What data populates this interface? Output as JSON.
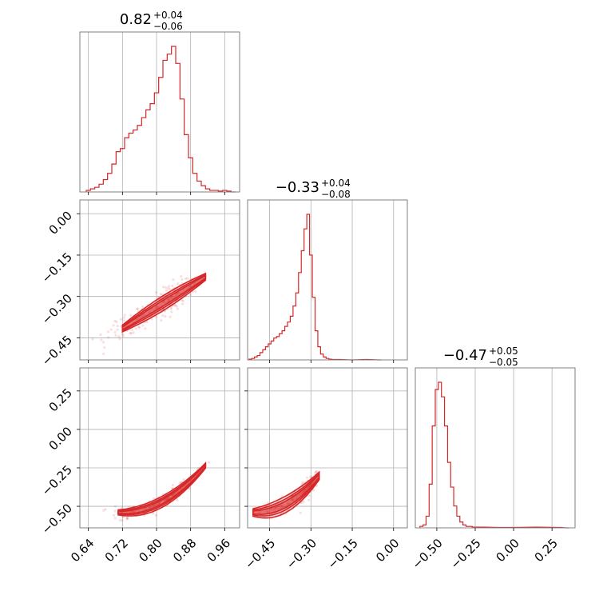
{
  "chart_data": {
    "type": "scatter",
    "variant": "corner-plot",
    "color": "#d62728",
    "grid": true,
    "titles": [
      {
        "median": "0.82",
        "plus": "+0.04",
        "minus": "−0.06"
      },
      {
        "median": "−0.33",
        "plus": "+0.04",
        "minus": "−0.08"
      },
      {
        "median": "−0.47",
        "plus": "+0.05",
        "minus": "−0.05"
      }
    ],
    "axes": [
      {
        "range": [
          0.62,
          0.995
        ],
        "ticks": [
          0.64,
          0.72,
          0.8,
          0.88,
          0.96
        ],
        "tick_labels": [
          "0.64",
          "0.72",
          "0.80",
          "0.88",
          "0.96"
        ]
      },
      {
        "range": [
          -0.53,
          0.05
        ],
        "ticks": [
          -0.45,
          -0.3,
          -0.15,
          0.0
        ],
        "tick_labels": [
          "−0.45",
          "−0.30",
          "−0.15",
          "0.00"
        ]
      },
      {
        "range": [
          -0.64,
          0.4
        ],
        "ticks": [
          -0.5,
          -0.25,
          0.0,
          0.25
        ],
        "tick_labels": [
          "−0.50",
          "−0.25",
          "0.00",
          "0.25"
        ]
      }
    ],
    "histograms": [
      {
        "x": [
          0.64,
          0.65,
          0.66,
          0.67,
          0.68,
          0.69,
          0.7,
          0.71,
          0.72,
          0.73,
          0.74,
          0.75,
          0.76,
          0.77,
          0.78,
          0.79,
          0.8,
          0.81,
          0.82,
          0.83,
          0.84,
          0.85,
          0.86,
          0.87,
          0.88,
          0.89,
          0.9,
          0.91,
          0.92,
          0.93,
          0.94,
          0.95,
          0.96,
          0.97,
          0.98
        ],
        "density": [
          1,
          2,
          3,
          5,
          8,
          12,
          18,
          26,
          28,
          35,
          38,
          40,
          43,
          48,
          53,
          57,
          64,
          74,
          85,
          89,
          94,
          83,
          60,
          37,
          22,
          12,
          7,
          4,
          2,
          1,
          1,
          0.5,
          1,
          0.5,
          0
        ]
      },
      {
        "x": [
          -0.52,
          -0.51,
          -0.5,
          -0.49,
          -0.48,
          -0.47,
          -0.46,
          -0.45,
          -0.44,
          -0.43,
          -0.42,
          -0.41,
          -0.4,
          -0.39,
          -0.38,
          -0.37,
          -0.36,
          -0.35,
          -0.34,
          -0.33,
          -0.32,
          -0.31,
          -0.3,
          -0.29,
          -0.28,
          -0.27,
          -0.26,
          -0.25,
          -0.24,
          -0.23,
          -0.22,
          -0.2,
          -0.15,
          -0.1,
          -0.05
        ],
        "density": [
          0.5,
          1,
          2,
          3,
          5,
          7,
          9,
          11,
          13,
          15,
          16,
          18,
          20,
          23,
          26,
          30,
          37,
          46,
          60,
          75,
          90,
          100,
          72,
          43,
          20,
          9,
          4,
          2,
          1,
          0.5,
          0.3,
          0.3,
          0,
          0.3,
          0
        ]
      },
      {
        "x": [
          -0.6,
          -0.58,
          -0.56,
          -0.54,
          -0.52,
          -0.5,
          -0.48,
          -0.46,
          -0.44,
          -0.42,
          -0.4,
          -0.38,
          -0.36,
          -0.34,
          -0.32,
          -0.3,
          -0.28,
          -0.26,
          -0.24,
          -0.2,
          -0.1,
          0.0,
          0.15,
          0.3,
          0.35
        ],
        "density": [
          1,
          2,
          8,
          30,
          70,
          95,
          100,
          90,
          70,
          45,
          28,
          15,
          8,
          4,
          2,
          1,
          1,
          0.5,
          0.5,
          0.5,
          0.3,
          0.3,
          0.5,
          0.3,
          0
        ]
      }
    ],
    "scatter_2d": [
      {
        "pair": [
          0,
          1
        ],
        "center": [
          0.82,
          -0.32
        ],
        "slope": 0.96,
        "spread": 0.025
      },
      {
        "pair": [
          0,
          2
        ],
        "center": [
          0.82,
          -0.48
        ],
        "slope": 0.8,
        "spread": 0.02
      },
      {
        "pair": [
          1,
          2
        ],
        "center": [
          -0.35,
          -0.48
        ],
        "slope": 0.6,
        "spread": 0.03
      }
    ]
  }
}
